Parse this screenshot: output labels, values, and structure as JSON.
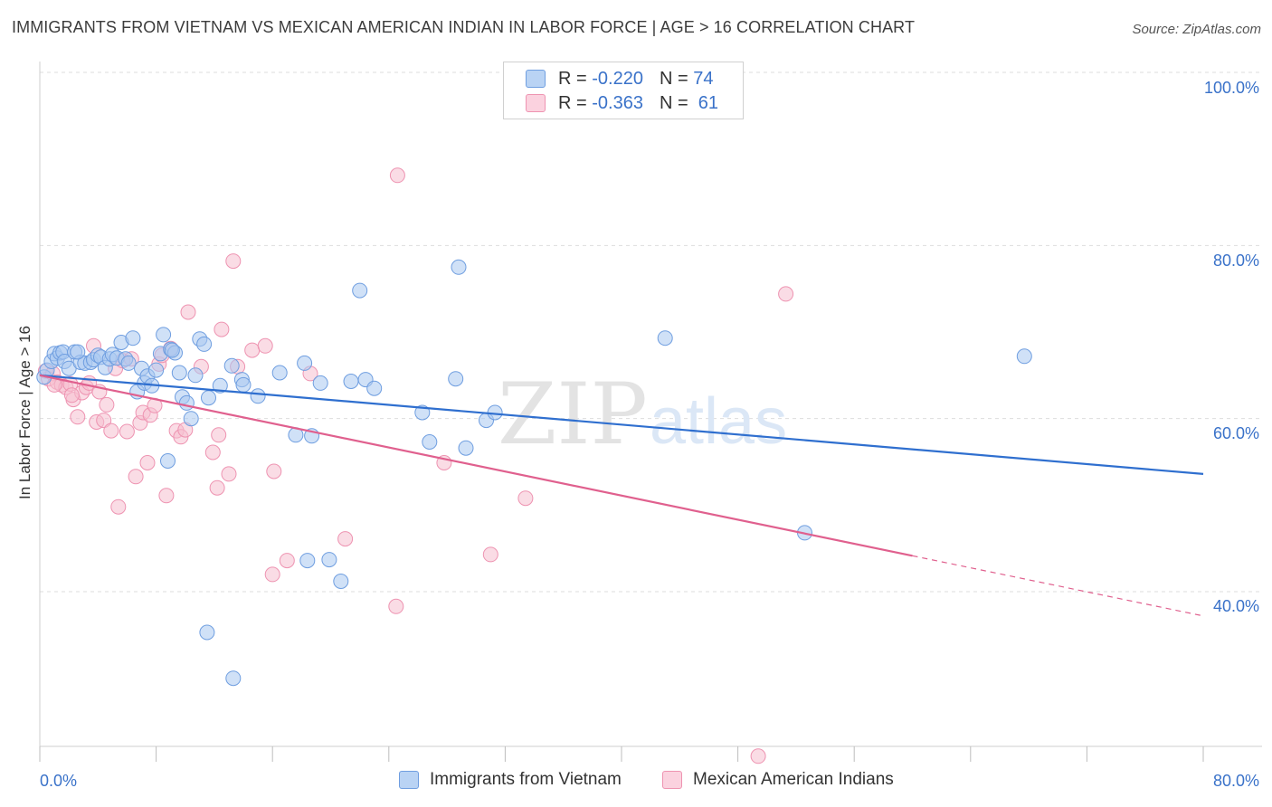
{
  "header": {
    "title": "IMMIGRANTS FROM VIETNAM VS MEXICAN AMERICAN INDIAN IN LABOR FORCE | AGE > 16 CORRELATION CHART",
    "source": "Source: ZipAtlas.com"
  },
  "legend": {
    "series1": {
      "r_label": "R = ",
      "r_value": "-0.220",
      "n_label": "N = ",
      "n_value": "74"
    },
    "series2": {
      "r_label": "R = ",
      "r_value": "-0.363",
      "n_label": "N = ",
      "n_value": "61"
    }
  },
  "watermark": {
    "zip": "ZIP",
    "atlas": "atlas"
  },
  "colors": {
    "blue_fill": "#a9c8f0",
    "blue_stroke": "#6f9ee0",
    "blue_line": "#2f6fcf",
    "pink_fill": "#f6bfd0",
    "pink_stroke": "#ee93b1",
    "pink_line": "#e0608e",
    "axis_text": "#3a72c9",
    "grid": "#dddddd"
  },
  "chart_data": {
    "type": "scatter",
    "title": "IMMIGRANTS FROM VIETNAM VS MEXICAN AMERICAN INDIAN IN LABOR FORCE | AGE > 16 CORRELATION CHART",
    "xlabel": "",
    "ylabel": "In Labor Force | Age > 16",
    "xlim": [
      0,
      80
    ],
    "ylim": [
      20,
      102
    ],
    "x_tick_labels": [
      "0.0%",
      "80.0%"
    ],
    "y_tick_values": [
      40,
      60,
      80,
      100
    ],
    "y_tick_labels": [
      "40.0%",
      "60.0%",
      "80.0%",
      "100.0%"
    ],
    "legend_position": "top-center",
    "series": [
      {
        "name": "Immigrants from Vietnam",
        "color": "#a9c8f0",
        "r": -0.22,
        "n": 74,
        "trend": {
          "x": [
            0,
            80
          ],
          "y": [
            65.0,
            53.6
          ],
          "dashed_from": null
        },
        "points": [
          [
            0.3,
            64.8
          ],
          [
            0.5,
            65.6
          ],
          [
            0.8,
            66.6
          ],
          [
            1.0,
            67.5
          ],
          [
            1.2,
            67.0
          ],
          [
            1.4,
            67.6
          ],
          [
            1.6,
            67.7
          ],
          [
            1.7,
            66.6
          ],
          [
            2.0,
            65.8
          ],
          [
            2.4,
            67.7
          ],
          [
            2.8,
            66.5
          ],
          [
            3.1,
            66.4
          ],
          [
            3.5,
            66.5
          ],
          [
            3.7,
            66.8
          ],
          [
            4.0,
            67.3
          ],
          [
            4.2,
            67.1
          ],
          [
            4.5,
            65.9
          ],
          [
            4.8,
            66.9
          ],
          [
            5.0,
            67.4
          ],
          [
            5.3,
            67.0
          ],
          [
            5.6,
            68.8
          ],
          [
            5.9,
            66.9
          ],
          [
            6.1,
            66.4
          ],
          [
            6.4,
            69.3
          ],
          [
            6.7,
            63.1
          ],
          [
            7.0,
            65.8
          ],
          [
            7.2,
            64.1
          ],
          [
            7.4,
            64.9
          ],
          [
            7.7,
            63.8
          ],
          [
            8.0,
            65.6
          ],
          [
            8.3,
            67.5
          ],
          [
            8.5,
            69.7
          ],
          [
            8.8,
            55.1
          ],
          [
            9.0,
            68.0
          ],
          [
            9.3,
            67.6
          ],
          [
            9.6,
            65.3
          ],
          [
            9.8,
            62.5
          ],
          [
            10.1,
            61.8
          ],
          [
            10.4,
            60.0
          ],
          [
            10.7,
            65.0
          ],
          [
            11.0,
            69.2
          ],
          [
            11.3,
            68.6
          ],
          [
            11.6,
            62.4
          ],
          [
            12.4,
            63.8
          ],
          [
            13.2,
            66.1
          ],
          [
            13.9,
            64.5
          ],
          [
            14.0,
            63.9
          ],
          [
            15.0,
            62.6
          ],
          [
            16.5,
            65.3
          ],
          [
            17.6,
            58.1
          ],
          [
            18.2,
            66.4
          ],
          [
            18.7,
            58.0
          ],
          [
            19.3,
            64.1
          ],
          [
            21.4,
            64.3
          ],
          [
            22.0,
            74.8
          ],
          [
            22.4,
            64.5
          ],
          [
            23.0,
            63.5
          ],
          [
            26.3,
            60.7
          ],
          [
            26.8,
            57.3
          ],
          [
            28.6,
            64.6
          ],
          [
            28.8,
            77.5
          ],
          [
            29.3,
            56.6
          ],
          [
            30.7,
            59.8
          ],
          [
            31.3,
            60.7
          ],
          [
            18.4,
            43.6
          ],
          [
            19.9,
            43.7
          ],
          [
            20.7,
            41.2
          ],
          [
            11.5,
            35.3
          ],
          [
            13.3,
            30.0
          ],
          [
            43.0,
            69.3
          ],
          [
            52.6,
            46.8
          ],
          [
            67.7,
            67.2
          ],
          [
            9.1,
            67.9
          ],
          [
            2.6,
            67.7
          ]
        ]
      },
      {
        "name": "Mexican American Indians",
        "color": "#f6bfd0",
        "r": -0.363,
        "n": 61,
        "trend": {
          "x": [
            0,
            80
          ],
          "y": [
            65.0,
            37.2
          ],
          "dashed_from": 60
        },
        "points": [
          [
            0.4,
            65.5
          ],
          [
            0.6,
            64.6
          ],
          [
            0.9,
            65.2
          ],
          [
            1.2,
            64.2
          ],
          [
            1.5,
            63.9
          ],
          [
            1.8,
            63.6
          ],
          [
            2.1,
            64.0
          ],
          [
            2.3,
            62.2
          ],
          [
            2.6,
            60.2
          ],
          [
            2.9,
            63.0
          ],
          [
            3.2,
            63.6
          ],
          [
            3.4,
            64.1
          ],
          [
            3.7,
            68.4
          ],
          [
            3.9,
            59.6
          ],
          [
            4.1,
            63.1
          ],
          [
            4.4,
            59.8
          ],
          [
            4.6,
            61.6
          ],
          [
            4.9,
            58.6
          ],
          [
            5.2,
            65.8
          ],
          [
            5.4,
            49.8
          ],
          [
            5.7,
            66.7
          ],
          [
            6.0,
            58.5
          ],
          [
            6.3,
            66.9
          ],
          [
            6.6,
            53.3
          ],
          [
            6.9,
            59.5
          ],
          [
            7.1,
            60.7
          ],
          [
            7.4,
            54.9
          ],
          [
            7.6,
            60.4
          ],
          [
            7.9,
            61.5
          ],
          [
            8.2,
            66.3
          ],
          [
            8.4,
            67.3
          ],
          [
            8.7,
            51.1
          ],
          [
            9.0,
            68.1
          ],
          [
            9.4,
            58.6
          ],
          [
            9.7,
            57.9
          ],
          [
            10.0,
            58.7
          ],
          [
            10.2,
            72.3
          ],
          [
            11.1,
            66.0
          ],
          [
            11.9,
            56.1
          ],
          [
            12.2,
            52.0
          ],
          [
            12.3,
            58.1
          ],
          [
            12.5,
            70.3
          ],
          [
            13.0,
            53.6
          ],
          [
            13.3,
            78.2
          ],
          [
            13.6,
            66.0
          ],
          [
            14.6,
            67.9
          ],
          [
            15.5,
            68.4
          ],
          [
            16.1,
            53.9
          ],
          [
            16.0,
            42.0
          ],
          [
            17.0,
            43.6
          ],
          [
            18.6,
            65.2
          ],
          [
            21.0,
            46.1
          ],
          [
            24.5,
            38.3
          ],
          [
            24.6,
            88.1
          ],
          [
            27.8,
            54.9
          ],
          [
            31.0,
            44.3
          ],
          [
            33.4,
            50.8
          ],
          [
            51.3,
            74.4
          ],
          [
            49.4,
            21.0
          ],
          [
            1.0,
            63.9
          ],
          [
            2.2,
            62.7
          ]
        ]
      }
    ]
  },
  "bottom_legend": {
    "series1_label": "Immigrants from Vietnam",
    "series2_label": "Mexican American Indians"
  }
}
